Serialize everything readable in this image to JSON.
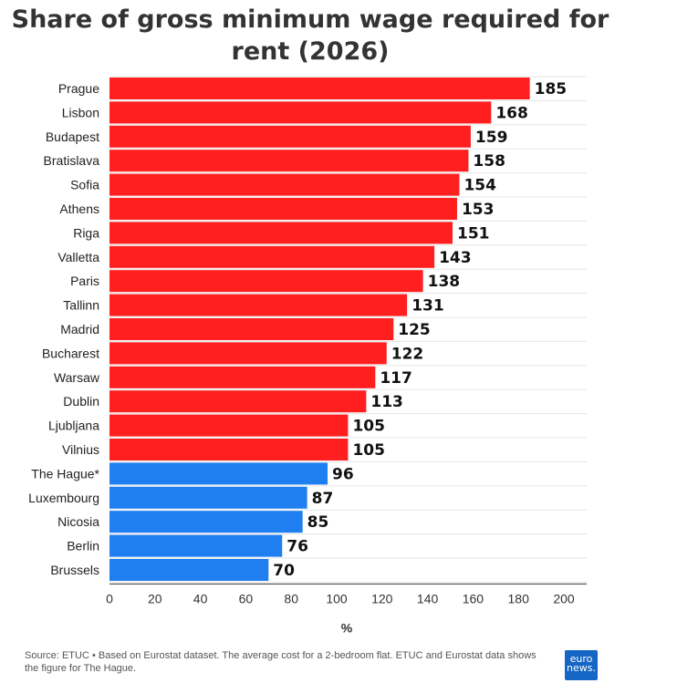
{
  "title": "Share of gross minimum wage required for rent (2026)",
  "source": "Source: ETUC • Based on Eurostat dataset. The average cost for a 2-bedroom flat. ETUC and Eurostat data shows the figure for The Hague.",
  "logo": {
    "line1": "euro",
    "line2": "news."
  },
  "colors": {
    "above": "#ff1f1f",
    "below": "#1f7ff0",
    "grid": "#e5e5e5",
    "axis": "#333333"
  },
  "chart_data": {
    "type": "bar",
    "orientation": "horizontal",
    "categories": [
      "Prague",
      "Lisbon",
      "Budapest",
      "Bratislava",
      "Sofia",
      "Athens",
      "Riga",
      "Valletta",
      "Paris",
      "Tallinn",
      "Madrid",
      "Bucharest",
      "Warsaw",
      "Dublin",
      "Ljubljana",
      "Vilnius",
      "The Hague*",
      "Luxembourg",
      "Nicosia",
      "Berlin",
      "Brussels"
    ],
    "values": [
      185,
      168,
      159,
      158,
      154,
      153,
      151,
      143,
      138,
      131,
      125,
      122,
      117,
      113,
      105,
      105,
      96,
      87,
      85,
      76,
      70
    ],
    "bar_colors": [
      "#ff1f1f",
      "#ff1f1f",
      "#ff1f1f",
      "#ff1f1f",
      "#ff1f1f",
      "#ff1f1f",
      "#ff1f1f",
      "#ff1f1f",
      "#ff1f1f",
      "#ff1f1f",
      "#ff1f1f",
      "#ff1f1f",
      "#ff1f1f",
      "#ff1f1f",
      "#ff1f1f",
      "#ff1f1f",
      "#1f7ff0",
      "#1f7ff0",
      "#1f7ff0",
      "#1f7ff0",
      "#1f7ff0"
    ],
    "xlabel": "%",
    "xlim": [
      0,
      210
    ],
    "xticks": [
      0,
      20,
      40,
      60,
      80,
      100,
      120,
      140,
      160,
      180,
      200
    ],
    "grid": true,
    "data_labels": true
  }
}
